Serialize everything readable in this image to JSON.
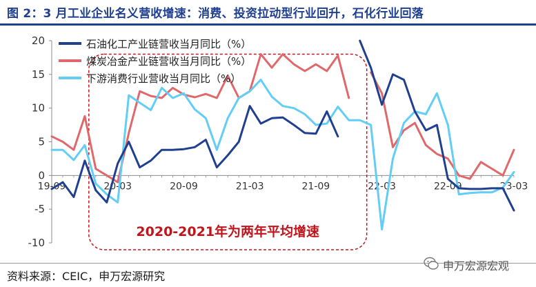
{
  "figure": {
    "title": "图 2：3 月工业企业名义营收增速：消费、投资拉动型行业回升，石化行业回落",
    "source": "资料来源：CEIC，申万宏源研究",
    "watermark": "申万宏源宏观"
  },
  "colors": {
    "title": "#1f3f8f",
    "series1": "#1f3f8f",
    "series2": "#e0686b",
    "series3": "#62cdf5",
    "annotation": "#c0151b",
    "axis": "#8c8c8c"
  },
  "annotation": {
    "label": "2020-2021年为两年平均增速",
    "x_range": [
      "2020-01",
      "2022-01"
    ],
    "y_range": [
      -10,
      18
    ]
  },
  "chart_data": {
    "type": "line",
    "x": [
      "2019-09",
      "2019-10",
      "2019-11",
      "2019-12",
      "2020-01",
      "2020-02",
      "2020-03",
      "2020-04",
      "2020-05",
      "2020-06",
      "2020-07",
      "2020-08",
      "2020-09",
      "2020-10",
      "2020-11",
      "2020-12",
      "2021-01",
      "2021-02",
      "2021-03",
      "2021-04",
      "2021-05",
      "2021-06",
      "2021-07",
      "2021-08",
      "2021-09",
      "2021-10",
      "2021-11",
      "2021-12",
      "2022-01",
      "2022-02",
      "2022-03",
      "2022-04",
      "2022-05",
      "2022-06",
      "2022-07",
      "2022-08",
      "2022-09",
      "2022-10",
      "2022-11",
      "2022-12",
      "2023-01",
      "2023-02",
      "2023-03"
    ],
    "series": [
      {
        "name": "石油化工产业链营收当月同比（%）",
        "values": [
          -2,
          -1,
          -3.2,
          2.2,
          -2.2,
          -4,
          1.8,
          5,
          1.2,
          2.2,
          3.8,
          3.8,
          3.9,
          4.2,
          5.3,
          1.2,
          3,
          5,
          10.3,
          7.7,
          8.5,
          8.6,
          7.5,
          6.3,
          6.2,
          9.5,
          5.8,
          null,
          20,
          16,
          10.5,
          15,
          14.2,
          9.5,
          6.7,
          7.5,
          -0.5,
          -1.9,
          -2,
          -2,
          -1.9,
          -1.9,
          -5.2
        ]
      },
      {
        "name": "煤炭冶金产业链营收当月同比（%）",
        "values": [
          5.8,
          5,
          3.8,
          8.8,
          1,
          0,
          -1,
          6.3,
          12.5,
          11.8,
          11.5,
          13,
          12,
          11.6,
          12.1,
          11.5,
          14.8,
          11.5,
          12.5,
          18,
          16,
          18,
          16.5,
          15.5,
          16.5,
          15.5,
          17.8,
          11.5,
          null,
          15.3,
          12.2,
          4.2,
          6.7,
          7.8,
          4.5,
          3.2,
          2.5,
          0,
          -0.5,
          2,
          1,
          0,
          3.8
        ]
      },
      {
        "name": "下游消费行业营收当月同比（%）",
        "values": [
          3.8,
          3.8,
          2.3,
          4.5,
          -1.2,
          -2.8,
          -4,
          11.9,
          10.8,
          9.7,
          13,
          11.5,
          12.2,
          9.8,
          8.5,
          3.8,
          8.5,
          11.5,
          12.5,
          14.2,
          11.7,
          10.3,
          10,
          9.1,
          7.5,
          7.7,
          10.2,
          8.2,
          8.2,
          7.5,
          -8,
          2.5,
          7.8,
          9.5,
          9.1,
          12.2,
          7.5,
          -2.8,
          -2.6,
          -2.5,
          -2.5,
          -1.8,
          0.5
        ]
      }
    ],
    "ylim": [
      -10,
      20
    ],
    "yticks": [
      -10,
      -5,
      0,
      5,
      10,
      15,
      20
    ],
    "xticks": [
      {
        "x": "2019-09",
        "label": "19-09"
      },
      {
        "x": "2020-03",
        "label": "20-03"
      },
      {
        "x": "2020-09",
        "label": "20-09"
      },
      {
        "x": "2021-03",
        "label": "21-03"
      },
      {
        "x": "2021-09",
        "label": "21-09"
      },
      {
        "x": "2022-03",
        "label": "22-03"
      },
      {
        "x": "2022-09",
        "label": "22-09"
      },
      {
        "x": "2023-03",
        "label": "23-03"
      }
    ],
    "legend": "top-left",
    "grid": false
  }
}
